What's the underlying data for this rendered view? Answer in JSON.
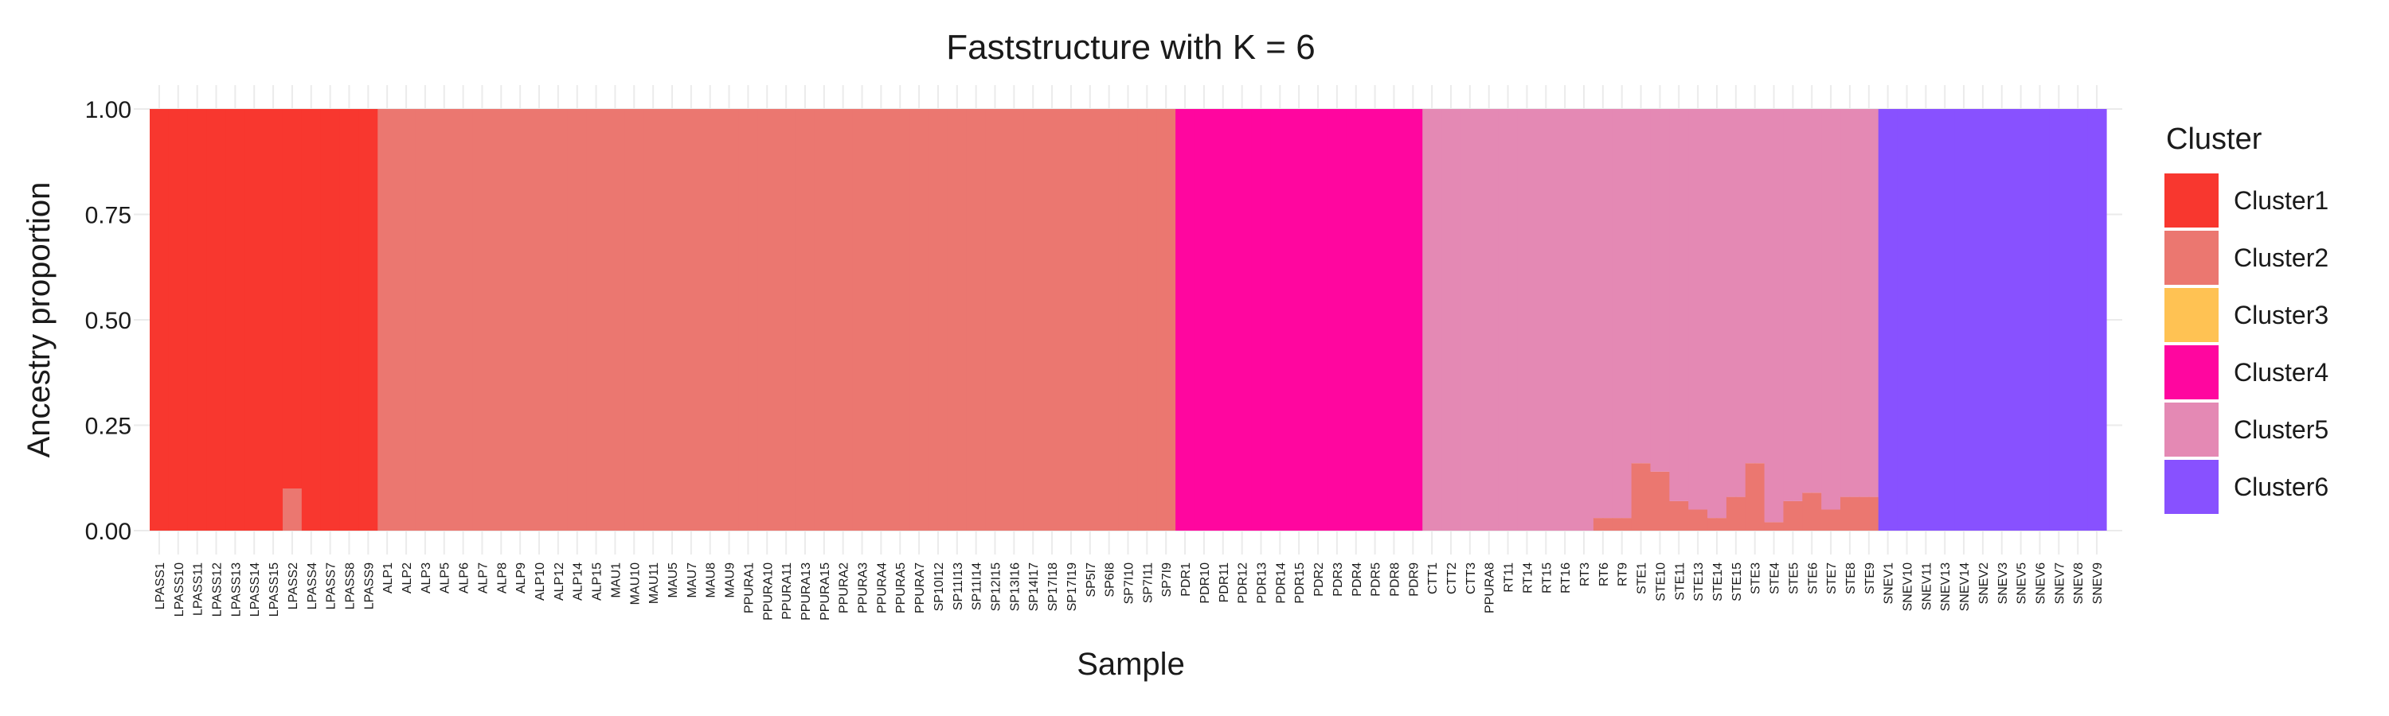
{
  "chart_data": {
    "type": "bar",
    "stacked": true,
    "title": "Faststructure with K = 6",
    "xlabel": "Sample",
    "ylabel": "Ancestry proportion",
    "ylim": [
      0,
      1
    ],
    "yticks": [
      "0.00",
      "0.25",
      "0.50",
      "0.75",
      "1.00"
    ],
    "grid": true,
    "legend": {
      "title": "Cluster",
      "position": "right"
    },
    "series": [
      {
        "name": "Cluster1",
        "color": "#F8372F"
      },
      {
        "name": "Cluster2",
        "color": "#EB7770"
      },
      {
        "name": "Cluster3",
        "color": "#FFC253"
      },
      {
        "name": "Cluster4",
        "color": "#FF069F"
      },
      {
        "name": "Cluster5",
        "color": "#E489B4"
      },
      {
        "name": "Cluster6",
        "color": "#8851FF"
      }
    ],
    "categories": [
      "LPASS1",
      "LPASS10",
      "LPASS11",
      "LPASS12",
      "LPASS13",
      "LPASS14",
      "LPASS15",
      "LPASS2",
      "LPASS4",
      "LPASS7",
      "LPASS8",
      "LPASS9",
      "ALP1",
      "ALP2",
      "ALP3",
      "ALP5",
      "ALP6",
      "ALP7",
      "ALP8",
      "ALP9",
      "ALP10",
      "ALP12",
      "ALP14",
      "ALP15",
      "MAU1",
      "MAU10",
      "MAU11",
      "MAU5",
      "MAU7",
      "MAU8",
      "MAU9",
      "PPURA1",
      "PPURA10",
      "PPURA11",
      "PPURA13",
      "PPURA15",
      "PPURA2",
      "PPURA3",
      "PPURA4",
      "PPURA5",
      "PPURA7",
      "SP10I12",
      "SP11I13",
      "SP11I14",
      "SP12I15",
      "SP13I16",
      "SP14I17",
      "SP17I18",
      "SP17I19",
      "SP5I7",
      "SP6I8",
      "SP7I10",
      "SP7I11",
      "SP7I9",
      "PDR1",
      "PDR10",
      "PDR11",
      "PDR12",
      "PDR13",
      "PDR14",
      "PDR15",
      "PDR2",
      "PDR3",
      "PDR4",
      "PDR5",
      "PDR8",
      "PDR9",
      "CTT1",
      "CTT2",
      "CTT3",
      "PPURA8",
      "RT11",
      "RT14",
      "RT15",
      "RT16",
      "RT3",
      "RT6",
      "RT9",
      "STE1",
      "STE10",
      "STE11",
      "STE13",
      "STE14",
      "STE15",
      "STE3",
      "STE4",
      "STE5",
      "STE6",
      "STE7",
      "STE8",
      "STE9",
      "SNEV1",
      "SNEV10",
      "SNEV11",
      "SNEV13",
      "SNEV14",
      "SNEV2",
      "SNEV3",
      "SNEV5",
      "SNEV6",
      "SNEV7",
      "SNEV8",
      "SNEV9"
    ],
    "groups": [
      {
        "range": [
          0,
          11
        ],
        "cluster": "Cluster1",
        "values": [
          1,
          1,
          1,
          1,
          1,
          1,
          1,
          0.9,
          1,
          1,
          1,
          1
        ],
        "other": "Cluster2"
      },
      {
        "range": [
          12,
          53
        ],
        "cluster": "Cluster2",
        "value": 1
      },
      {
        "range": [
          54,
          66
        ],
        "cluster": "Cluster4",
        "value": 1
      },
      {
        "range": [
          67,
          90
        ],
        "cluster": "Cluster5",
        "values": [
          1,
          1,
          1,
          1,
          1,
          1,
          1,
          1,
          1,
          0.97,
          0.97,
          0.84,
          0.86,
          0.93,
          0.95,
          0.97,
          0.92,
          0.84,
          0.98,
          0.93,
          0.91,
          0.95,
          0.92,
          0.92
        ],
        "other": "Cluster2"
      },
      {
        "range": [
          91,
          102
        ],
        "cluster": "Cluster6",
        "value": 1
      }
    ]
  }
}
